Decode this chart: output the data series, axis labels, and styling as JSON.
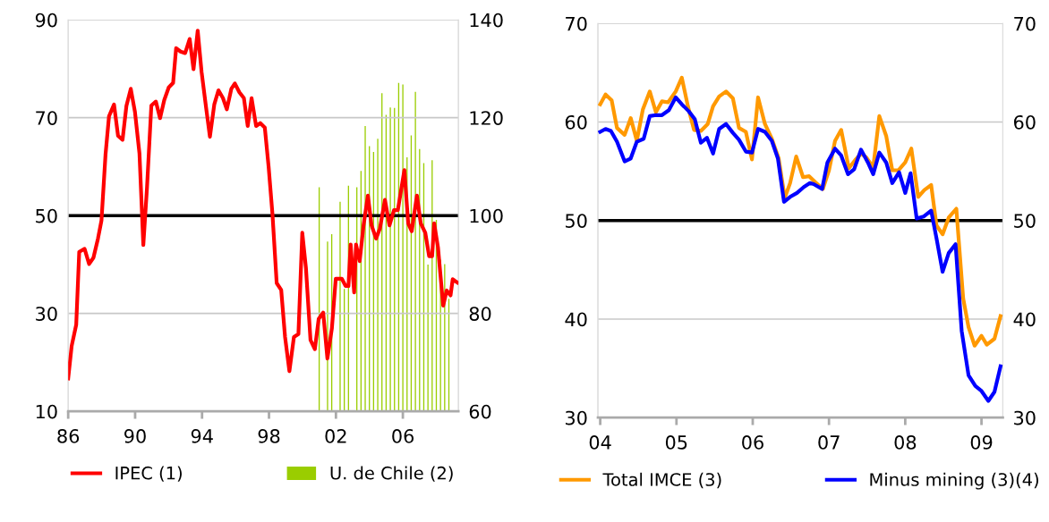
{
  "chart_data": [
    {
      "type": "line",
      "xlim": [
        1986,
        2009.32
      ],
      "xticks": [
        {
          "value": 1986,
          "label": "86"
        },
        {
          "value": 1990,
          "label": "90"
        },
        {
          "value": 1994,
          "label": "94"
        },
        {
          "value": 1998,
          "label": "98"
        },
        {
          "value": 2002,
          "label": "02"
        },
        {
          "value": 2006,
          "label": "06"
        }
      ],
      "ylim": [
        10,
        90
      ],
      "yticks": [
        10,
        30,
        50,
        70,
        90
      ],
      "y2lim": [
        60,
        140
      ],
      "y2ticks": [
        60,
        80,
        100,
        120,
        140
      ],
      "grid": "y",
      "legend": "bottom",
      "ref_lines": [
        {
          "axis": "y",
          "value": 50,
          "color": "#000000"
        }
      ],
      "series": [
        {
          "name": "U. de Chile (2)",
          "type": "bar",
          "axis": "y2",
          "color": "#9acd00",
          "x": [
            2001.0,
            2001.25,
            2001.5,
            2001.75,
            2002.0,
            2002.25,
            2002.5,
            2002.75,
            2003.0,
            2003.25,
            2003.5,
            2003.75,
            2004.0,
            2004.25,
            2004.5,
            2004.75,
            2005.0,
            2005.25,
            2005.5,
            2005.75,
            2006.0,
            2006.25,
            2006.5,
            2006.75,
            2007.0,
            2007.25,
            2007.5,
            2007.75,
            2008.0,
            2008.25,
            2008.5,
            2008.75
          ],
          "values": [
            105.8,
            null,
            94.7,
            96.2,
            null,
            102.8,
            85,
            106.1,
            null,
            105.8,
            109.1,
            118.3,
            114.2,
            113.0,
            115.7,
            125.0,
            120.6,
            122.1,
            122.0,
            127.1,
            126.8,
            111.9,
            116.4,
            125.3,
            113.6,
            110.7,
            90,
            111.3,
            99.1,
            91,
            90.1,
            83
          ]
        },
        {
          "name": "IPEC (1)",
          "color": "#ff0000",
          "x": [
            1986.0,
            1986.21,
            1986.48,
            1986.66,
            1986.98,
            1987.25,
            1987.51,
            1987.78,
            1987.99,
            1988.23,
            1988.44,
            1988.74,
            1988.98,
            1989.25,
            1989.48,
            1989.74,
            1989.99,
            1990.26,
            1990.49,
            1990.71,
            1990.97,
            1991.24,
            1991.49,
            1991.74,
            1992.01,
            1992.27,
            1992.45,
            1992.72,
            1992.99,
            1993.26,
            1993.49,
            1993.74,
            1993.97,
            1994.24,
            1994.47,
            1994.73,
            1994.98,
            1995.25,
            1995.48,
            1995.75,
            1995.96,
            1996.23,
            1996.5,
            1996.73,
            1996.96,
            1997.23,
            1997.48,
            1997.75,
            1997.98,
            1998.21,
            1998.46,
            1998.73,
            1998.96,
            1999.22,
            1999.49,
            1999.76,
            1999.99,
            2000.21,
            2000.48,
            2000.74,
            2000.97,
            2001.24,
            2001.49,
            2001.76,
            2001.99,
            2002.35,
            2002.58,
            2002.75,
            2002.88,
            2003.09,
            2003.2,
            2003.42,
            2003.65,
            2003.91,
            2004.13,
            2004.4,
            2004.63,
            2004.93,
            2005.2,
            2005.47,
            2005.7,
            2006.09,
            2006.32,
            2006.53,
            2006.84,
            2007.07,
            2007.34,
            2007.57,
            2007.75,
            2007.87,
            2008.1,
            2008.41,
            2008.62,
            2008.85,
            2008.98,
            2009.26
          ],
          "values": [
            16.7,
            23.4,
            27.7,
            42.6,
            43.2,
            40.1,
            41.4,
            45.3,
            49.0,
            62.4,
            70.3,
            72.7,
            66.3,
            65.5,
            72.4,
            75.9,
            71.2,
            62.7,
            44.0,
            55.7,
            72.5,
            73.3,
            69.9,
            73.6,
            76.2,
            77.1,
            84.2,
            83.5,
            83.2,
            86.1,
            79.9,
            87.8,
            79.4,
            72.1,
            66.1,
            72.7,
            75.6,
            74.0,
            71.7,
            75.9,
            77.0,
            75.2,
            74.0,
            68.3,
            74.0,
            68.3,
            68.9,
            68.0,
            59.9,
            50.2,
            36.2,
            34.8,
            25.2,
            18.2,
            25.2,
            25.8,
            46.5,
            39.2,
            24.6,
            22.7,
            28.9,
            30.2,
            20.8,
            27.0,
            37.1,
            37.1,
            35.6,
            35.6,
            44.1,
            34.3,
            44.1,
            40.7,
            48.0,
            54.1,
            48.0,
            45.3,
            47.4,
            53.2,
            48.0,
            51.1,
            51.1,
            59.3,
            48.4,
            46.8,
            54.1,
            48.4,
            46.5,
            41.7,
            41.7,
            48.4,
            43.5,
            31.6,
            34.7,
            33.7,
            37.0,
            36.3
          ]
        }
      ]
    },
    {
      "type": "line",
      "xlim": [
        2003.97,
        2009.28
      ],
      "xticks": [
        {
          "value": 2004,
          "label": "04"
        },
        {
          "value": 2005,
          "label": "05"
        },
        {
          "value": 2006,
          "label": "06"
        },
        {
          "value": 2007,
          "label": "07"
        },
        {
          "value": 2008,
          "label": "08"
        },
        {
          "value": 2009,
          "label": "09"
        }
      ],
      "ylim": [
        30,
        70
      ],
      "yticks": [
        30,
        40,
        50,
        60,
        70
      ],
      "y2lim": [
        30,
        70
      ],
      "y2ticks": [
        30,
        40,
        50,
        60,
        70
      ],
      "grid": "y",
      "legend": "bottom",
      "ref_lines": [
        {
          "axis": "y",
          "value": 50,
          "color": "#000000"
        }
      ],
      "series": [
        {
          "name": "Total IMCE (3)",
          "color": "#ff9900",
          "x": [
            2004.0,
            2004.07,
            2004.15,
            2004.22,
            2004.32,
            2004.4,
            2004.48,
            2004.56,
            2004.65,
            2004.73,
            2004.81,
            2004.89,
            2004.99,
            2005.07,
            2005.15,
            2005.23,
            2005.32,
            2005.41,
            2005.48,
            2005.56,
            2005.65,
            2005.74,
            2005.82,
            2005.91,
            2005.99,
            2006.07,
            2006.16,
            2006.25,
            2006.34,
            2006.42,
            2006.49,
            2006.57,
            2006.66,
            2006.74,
            2006.82,
            2006.92,
            2007.0,
            2007.08,
            2007.16,
            2007.26,
            2007.34,
            2007.42,
            2007.49,
            2007.58,
            2007.66,
            2007.75,
            2007.83,
            2007.91,
            2008.0,
            2008.08,
            2008.17,
            2008.25,
            2008.34,
            2008.41,
            2008.49,
            2008.57,
            2008.67,
            2008.76,
            2008.83,
            2008.91,
            2009.0,
            2009.07,
            2009.17,
            2009.25
          ],
          "values": [
            61.8,
            62.8,
            62.2,
            59.4,
            58.7,
            60.4,
            58.1,
            61.3,
            63.1,
            61.0,
            62.1,
            62.0,
            63.1,
            64.5,
            61.6,
            59.2,
            59.1,
            59.8,
            61.6,
            62.6,
            63.1,
            62.4,
            59.4,
            59.0,
            56.2,
            62.5,
            59.8,
            58.3,
            56.3,
            52.3,
            53.8,
            56.5,
            54.4,
            54.5,
            53.9,
            53.2,
            55.1,
            58.1,
            59.2,
            55.3,
            56.1,
            56.8,
            56.4,
            55.4,
            60.6,
            58.6,
            55.1,
            55.1,
            55.9,
            57.3,
            52.4,
            53.1,
            53.6,
            49.5,
            48.6,
            50.3,
            51.2,
            42.1,
            39.2,
            37.3,
            38.3,
            37.4,
            38.0,
            40.3
          ]
        },
        {
          "name": "Minus mining (3)(4)",
          "color": "#0000ff",
          "x": [
            2004.0,
            2004.07,
            2004.14,
            2004.22,
            2004.32,
            2004.4,
            2004.48,
            2004.57,
            2004.65,
            2004.73,
            2004.81,
            2004.9,
            2004.99,
            2005.07,
            2005.16,
            2005.24,
            2005.32,
            2005.4,
            2005.48,
            2005.56,
            2005.65,
            2005.74,
            2005.82,
            2005.91,
            2005.99,
            2006.07,
            2006.16,
            2006.25,
            2006.33,
            2006.41,
            2006.49,
            2006.58,
            2006.67,
            2006.75,
            2006.8,
            2006.91,
            2006.98,
            2007.08,
            2007.16,
            2007.25,
            2007.33,
            2007.42,
            2007.51,
            2007.58,
            2007.66,
            2007.75,
            2007.83,
            2007.92,
            2008.0,
            2008.07,
            2008.15,
            2008.24,
            2008.34,
            2008.41,
            2008.49,
            2008.57,
            2008.66,
            2008.74,
            2008.83,
            2008.92,
            2009.0,
            2009.09,
            2009.17,
            2009.25
          ],
          "values": [
            59.0,
            59.3,
            59.1,
            58.0,
            56.0,
            56.3,
            58.0,
            58.3,
            60.6,
            60.7,
            60.7,
            61.2,
            62.5,
            61.8,
            61.1,
            60.3,
            57.9,
            58.4,
            56.8,
            59.3,
            59.8,
            58.9,
            58.2,
            57.0,
            56.9,
            59.3,
            59.0,
            58.1,
            56.3,
            51.9,
            52.4,
            52.8,
            53.4,
            53.8,
            53.7,
            53.2,
            55.9,
            57.3,
            56.6,
            54.7,
            55.2,
            57.2,
            55.9,
            54.7,
            56.9,
            55.9,
            53.8,
            54.9,
            52.8,
            54.8,
            50.2,
            50.4,
            51.0,
            48.2,
            44.8,
            46.7,
            47.6,
            38.8,
            34.3,
            33.2,
            32.7,
            31.7,
            32.6,
            35.2
          ]
        }
      ]
    }
  ]
}
